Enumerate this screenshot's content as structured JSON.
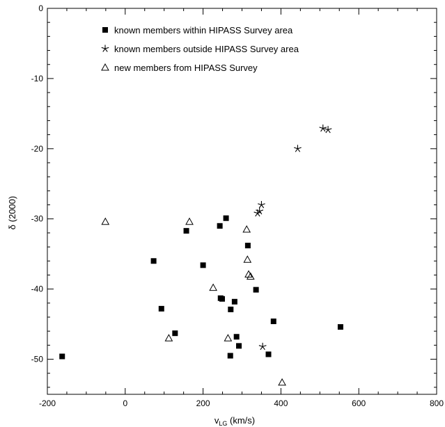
{
  "chart_data": {
    "type": "scatter",
    "xlabel": "v",
    "xlabel_sub": "LG",
    "xlabel_unit": " (km/s)",
    "ylabel": "δ (2000)",
    "xlim": [
      -200,
      800
    ],
    "ylim": [
      -55,
      0
    ],
    "x_ticks": [
      -200,
      0,
      200,
      400,
      600,
      800
    ],
    "y_ticks": [
      0,
      -10,
      -20,
      -30,
      -40,
      -50
    ],
    "legend_position": "top-left",
    "series": [
      {
        "name": "known members within HIPASS Survey area",
        "marker": "square",
        "points": [
          {
            "x": -162,
            "y": -49.6
          },
          {
            "x": 73,
            "y": -36.0
          },
          {
            "x": 93,
            "y": -42.8
          },
          {
            "x": 128,
            "y": -46.3
          },
          {
            "x": 157,
            "y": -31.7
          },
          {
            "x": 200,
            "y": -36.6
          },
          {
            "x": 243,
            "y": -31.0
          },
          {
            "x": 245,
            "y": -41.3
          },
          {
            "x": 249,
            "y": -41.4
          },
          {
            "x": 259,
            "y": -29.9
          },
          {
            "x": 270,
            "y": -49.5
          },
          {
            "x": 271,
            "y": -42.9
          },
          {
            "x": 281,
            "y": -41.8
          },
          {
            "x": 286,
            "y": -46.8
          },
          {
            "x": 292,
            "y": -48.1
          },
          {
            "x": 315,
            "y": -33.8
          },
          {
            "x": 336,
            "y": -40.1
          },
          {
            "x": 368,
            "y": -49.3
          },
          {
            "x": 381,
            "y": -44.6
          },
          {
            "x": 553,
            "y": -45.4
          }
        ]
      },
      {
        "name": "known members outside HIPASS Survey area",
        "marker": "star",
        "points": [
          {
            "x": 340,
            "y": -29.2
          },
          {
            "x": 345,
            "y": -28.9
          },
          {
            "x": 350,
            "y": -28.0
          },
          {
            "x": 353,
            "y": -48.2
          },
          {
            "x": 443,
            "y": -20.0
          },
          {
            "x": 508,
            "y": -17.1
          },
          {
            "x": 521,
            "y": -17.3
          }
        ]
      },
      {
        "name": "new members from HIPASS Survey",
        "marker": "triangle",
        "points": [
          {
            "x": -51,
            "y": -30.4
          },
          {
            "x": 112,
            "y": -47.0
          },
          {
            "x": 165,
            "y": -30.4
          },
          {
            "x": 226,
            "y": -39.8
          },
          {
            "x": 264,
            "y": -47.0
          },
          {
            "x": 312,
            "y": -31.5
          },
          {
            "x": 314,
            "y": -35.8
          },
          {
            "x": 317,
            "y": -37.9
          },
          {
            "x": 322,
            "y": -38.2
          },
          {
            "x": 403,
            "y": -53.3
          }
        ]
      }
    ]
  }
}
